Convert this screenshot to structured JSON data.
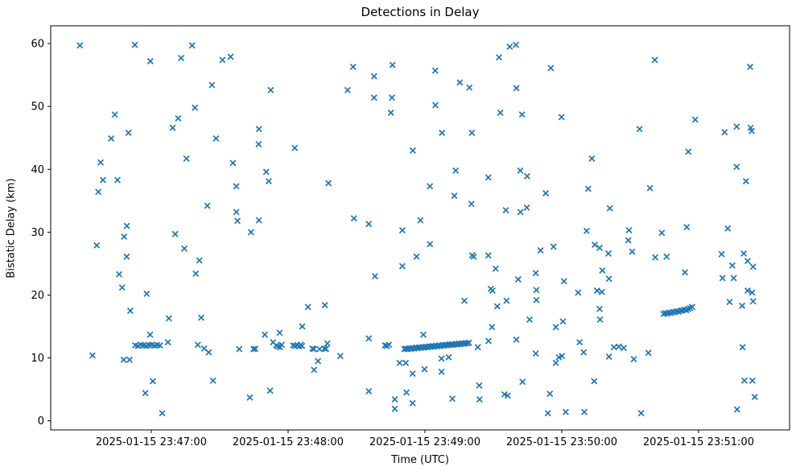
{
  "figure": {
    "title": "Detections in Delay",
    "xlabel": "Time (UTC)",
    "ylabel": "Bistatic Delay (km)"
  },
  "chart_data": {
    "type": "scatter",
    "title": "Detections in Delay",
    "xlabel": "Time (UTC)",
    "ylabel": "Bistatic Delay (km)",
    "marker": "x",
    "marker_color": "#1f77b4",
    "axis_color": "#000000",
    "grid": false,
    "legend": null,
    "x_unit": "seconds after 2025-01-15 23:46:00 UTC",
    "xlim_seconds": [
      15.9,
      339.9
    ],
    "ylim": [
      -1.45,
      62.83
    ],
    "x_ticks": [
      {
        "seconds": 60,
        "label": "2025-01-15 23:47:00"
      },
      {
        "seconds": 120,
        "label": "2025-01-15 23:48:00"
      },
      {
        "seconds": 180,
        "label": "2025-01-15 23:49:00"
      },
      {
        "seconds": 240,
        "label": "2025-01-15 23:50:00"
      },
      {
        "seconds": 300,
        "label": "2025-01-15 23:51:00"
      }
    ],
    "y_ticks": [
      0,
      10,
      20,
      30,
      40,
      50,
      60
    ],
    "points": [
      [
        28.7,
        59.7
      ],
      [
        52.8,
        59.8
      ],
      [
        77.9,
        59.7
      ],
      [
        59.6,
        57.2
      ],
      [
        73.1,
        57.7
      ],
      [
        79.1,
        49.8
      ],
      [
        44,
        48.7
      ],
      [
        71.8,
        48.1
      ],
      [
        69.4,
        46.6
      ],
      [
        50,
        45.8
      ],
      [
        42.4,
        44.9
      ],
      [
        37.8,
        41.1
      ],
      [
        75.4,
        41.7
      ],
      [
        38.8,
        38.3
      ],
      [
        45.2,
        38.3
      ],
      [
        36.8,
        36.4
      ],
      [
        49.3,
        31
      ],
      [
        48.1,
        29.3
      ],
      [
        70.5,
        29.7
      ],
      [
        36.1,
        27.9
      ],
      [
        74.5,
        27.4
      ],
      [
        49.2,
        26.1
      ],
      [
        81.1,
        25.5
      ],
      [
        45.9,
        23.3
      ],
      [
        79.5,
        23.4
      ],
      [
        47.2,
        21.2
      ],
      [
        58,
        20.2
      ],
      [
        50.8,
        17.5
      ],
      [
        67.7,
        16.3
      ],
      [
        59.5,
        13.7
      ],
      [
        53,
        12.0
      ],
      [
        54.2,
        11.9
      ],
      [
        55.4,
        12.1
      ],
      [
        56.6,
        12.0
      ],
      [
        57.8,
        11.9
      ],
      [
        59,
        12.05
      ],
      [
        60.2,
        12.1
      ],
      [
        61.4,
        11.95
      ],
      [
        62.6,
        12.05
      ],
      [
        63.8,
        12.0
      ],
      [
        67.3,
        12.5
      ],
      [
        80.4,
        12.1
      ],
      [
        34.2,
        10.4
      ],
      [
        47.9,
        9.7
      ],
      [
        50.5,
        9.7
      ],
      [
        60.7,
        6.3
      ],
      [
        57.4,
        4.4
      ],
      [
        64.8,
        1.2
      ],
      [
        83.2,
        11.5
      ],
      [
        85.2,
        10.9
      ],
      [
        81.9,
        16.4
      ],
      [
        91.2,
        57.4
      ],
      [
        94.8,
        57.9
      ],
      [
        86.6,
        53.4
      ],
      [
        112.4,
        52.6
      ],
      [
        146.1,
        52.6
      ],
      [
        107.2,
        46.4
      ],
      [
        88.4,
        44.9
      ],
      [
        107.1,
        44
      ],
      [
        122.9,
        43.4
      ],
      [
        95.8,
        41
      ],
      [
        110.4,
        39.6
      ],
      [
        111.5,
        38.1
      ],
      [
        97.3,
        37.3
      ],
      [
        137.7,
        37.8
      ],
      [
        84.6,
        34.2
      ],
      [
        97.3,
        33.2
      ],
      [
        97.8,
        31.8
      ],
      [
        107.2,
        31.9
      ],
      [
        148.5,
        56.3
      ],
      [
        103.7,
        30
      ],
      [
        98.6,
        11.4
      ],
      [
        104.8,
        11.4
      ],
      [
        105.6,
        11.45
      ],
      [
        109.8,
        13.7
      ],
      [
        116.3,
        14
      ],
      [
        113.4,
        12.5
      ],
      [
        114.8,
        12
      ],
      [
        115.5,
        11.8
      ],
      [
        116.5,
        11.7
      ],
      [
        117.2,
        12.1
      ],
      [
        126.2,
        15
      ],
      [
        128.7,
        18.1
      ],
      [
        136.1,
        18.4
      ],
      [
        122.2,
        12
      ],
      [
        123.1,
        11.9
      ],
      [
        124,
        12.05
      ],
      [
        124.9,
        11.85
      ],
      [
        125.5,
        12.1
      ],
      [
        126.1,
        11.9
      ],
      [
        130.7,
        11.5
      ],
      [
        131.3,
        11.4
      ],
      [
        133.8,
        11.4
      ],
      [
        135.9,
        11.5
      ],
      [
        136.6,
        11.4
      ],
      [
        137.2,
        12.3
      ],
      [
        142.9,
        10.3
      ],
      [
        133.1,
        9.5
      ],
      [
        131.4,
        8.1
      ],
      [
        87.1,
        6.4
      ],
      [
        112.1,
        4.8
      ],
      [
        103.2,
        3.7
      ],
      [
        212.5,
        57.8
      ],
      [
        165.8,
        56.6
      ],
      [
        184.5,
        55.7
      ],
      [
        157.7,
        54.8
      ],
      [
        195.3,
        53.8
      ],
      [
        199.5,
        53
      ],
      [
        157.7,
        51.4
      ],
      [
        165.5,
        51.4
      ],
      [
        184.6,
        50.2
      ],
      [
        213.1,
        49
      ],
      [
        165.1,
        49
      ],
      [
        187.5,
        45.8
      ],
      [
        200.6,
        45.8
      ],
      [
        174.7,
        43
      ],
      [
        193.5,
        39.8
      ],
      [
        207.8,
        38.7
      ],
      [
        182.2,
        37.3
      ],
      [
        192.9,
        35.8
      ],
      [
        200.4,
        34.5
      ],
      [
        148.9,
        32.2
      ],
      [
        155.4,
        31.3
      ],
      [
        178,
        31.9
      ],
      [
        170.1,
        30.3
      ],
      [
        182.2,
        28.1
      ],
      [
        176.3,
        26.1
      ],
      [
        200.7,
        26.3
      ],
      [
        201.4,
        26.1
      ],
      [
        207.8,
        26.3
      ],
      [
        170.1,
        24.6
      ],
      [
        211,
        24.2
      ],
      [
        158.1,
        23
      ],
      [
        208.9,
        21
      ],
      [
        209.6,
        20.7
      ],
      [
        197.3,
        19.1
      ],
      [
        211.7,
        18.2
      ],
      [
        209.4,
        14.9
      ],
      [
        155.4,
        13.1
      ],
      [
        179.3,
        13.7
      ],
      [
        162.5,
        12
      ],
      [
        163.3,
        11.9
      ],
      [
        164.2,
        12.1
      ],
      [
        171.0,
        11.4
      ],
      [
        171.7,
        11.48
      ],
      [
        172.4,
        11.4
      ],
      [
        173.2,
        11.52
      ],
      [
        173.9,
        11.46
      ],
      [
        174.6,
        11.59
      ],
      [
        175.3,
        11.5
      ],
      [
        176.1,
        11.62
      ],
      [
        176.8,
        11.55
      ],
      [
        177.5,
        11.68
      ],
      [
        178.2,
        11.61
      ],
      [
        179.0,
        11.73
      ],
      [
        179.7,
        11.66
      ],
      [
        180.4,
        11.78
      ],
      [
        181.1,
        11.7
      ],
      [
        181.9,
        11.83
      ],
      [
        182.6,
        11.76
      ],
      [
        183.3,
        11.88
      ],
      [
        184.0,
        11.81
      ],
      [
        184.8,
        11.93
      ],
      [
        185.5,
        11.86
      ],
      [
        186.2,
        11.98
      ],
      [
        186.9,
        11.91
      ],
      [
        187.7,
        12.03
      ],
      [
        188.4,
        11.96
      ],
      [
        189.1,
        12.08
      ],
      [
        189.8,
        12.01
      ],
      [
        190.6,
        12.13
      ],
      [
        191.3,
        12.06
      ],
      [
        192.0,
        12.18
      ],
      [
        192.7,
        12.1
      ],
      [
        193.5,
        12.22
      ],
      [
        194.2,
        12.15
      ],
      [
        194.9,
        12.27
      ],
      [
        195.6,
        12.2
      ],
      [
        196.4,
        12.32
      ],
      [
        197.1,
        12.25
      ],
      [
        197.8,
        12.37
      ],
      [
        198.5,
        12.3
      ],
      [
        199.3,
        12.42
      ],
      [
        203.2,
        11.7
      ],
      [
        207.9,
        12.7
      ],
      [
        187.3,
        9.9
      ],
      [
        190.4,
        10.1
      ],
      [
        168.9,
        9.2
      ],
      [
        171.6,
        9.2
      ],
      [
        179.8,
        8.2
      ],
      [
        174.6,
        7.5
      ],
      [
        187.3,
        7.8
      ],
      [
        203.8,
        5.6
      ],
      [
        155.4,
        4.7
      ],
      [
        171.9,
        4.5
      ],
      [
        166.8,
        3.4
      ],
      [
        174.6,
        2.8
      ],
      [
        192,
        3.5
      ],
      [
        166.8,
        1.9
      ],
      [
        204,
        3.4
      ],
      [
        214.9,
        4.2
      ],
      [
        216.3,
        4.0
      ],
      [
        215.8,
        19.1
      ],
      [
        217.2,
        59.5
      ],
      [
        219.9,
        59.8
      ],
      [
        280.8,
        57.4
      ],
      [
        235.2,
        56.1
      ],
      [
        220.1,
        52.9
      ],
      [
        222.6,
        48.7
      ],
      [
        239.9,
        48.3
      ],
      [
        274.1,
        46.4
      ],
      [
        253.2,
        41.7
      ],
      [
        221.8,
        39.8
      ],
      [
        224.8,
        38.9
      ],
      [
        233,
        36.2
      ],
      [
        251.6,
        36.9
      ],
      [
        278.7,
        37
      ],
      [
        215.5,
        33.5
      ],
      [
        221.9,
        33.2
      ],
      [
        224.7,
        33.9
      ],
      [
        261.1,
        33.8
      ],
      [
        250.9,
        30.2
      ],
      [
        269.5,
        30.3
      ],
      [
        283.9,
        29.9
      ],
      [
        269.2,
        28.7
      ],
      [
        230.7,
        27.1
      ],
      [
        236.4,
        27.7
      ],
      [
        254.5,
        28
      ],
      [
        256.6,
        27.5
      ],
      [
        260.5,
        26.6
      ],
      [
        270.9,
        26.9
      ],
      [
        281,
        26
      ],
      [
        220.9,
        22.5
      ],
      [
        228.6,
        23.5
      ],
      [
        257.8,
        23.9
      ],
      [
        241,
        22.2
      ],
      [
        260.7,
        22.6
      ],
      [
        228.9,
        20.8
      ],
      [
        247.2,
        20.4
      ],
      [
        255.5,
        20.7
      ],
      [
        257.6,
        20.5
      ],
      [
        228.9,
        19.2
      ],
      [
        256.6,
        17.8
      ],
      [
        256.8,
        16.1
      ],
      [
        225.9,
        16.1
      ],
      [
        240.5,
        15.8
      ],
      [
        237.4,
        14.9
      ],
      [
        220.1,
        12.9
      ],
      [
        247.8,
        12.5
      ],
      [
        262.9,
        11.7
      ],
      [
        265,
        11.8
      ],
      [
        267.2,
        11.6
      ],
      [
        249.6,
        10.9
      ],
      [
        228.6,
        10.7
      ],
      [
        260.7,
        10.2
      ],
      [
        278,
        10.8
      ],
      [
        271.6,
        9.8
      ],
      [
        238.7,
        10.1
      ],
      [
        240.1,
        10.3
      ],
      [
        237.4,
        9.2
      ],
      [
        222.8,
        6.2
      ],
      [
        254.2,
        6.3
      ],
      [
        234.8,
        4.3
      ],
      [
        233.9,
        1.2
      ],
      [
        241.7,
        1.4
      ],
      [
        249.9,
        1.4
      ],
      [
        274.8,
        1.2
      ],
      [
        322.6,
        56.3
      ],
      [
        298.5,
        47.9
      ],
      [
        311.4,
        45.9
      ],
      [
        316.7,
        46.8
      ],
      [
        322.8,
        46.6
      ],
      [
        323.3,
        46.1
      ],
      [
        295.5,
        42.8
      ],
      [
        316.7,
        40.4
      ],
      [
        320.8,
        38.1
      ],
      [
        294.8,
        30.8
      ],
      [
        312.8,
        30.6
      ],
      [
        286,
        26.1
      ],
      [
        294,
        23.6
      ],
      [
        310.1,
        26.5
      ],
      [
        314.8,
        24.7
      ],
      [
        319.8,
        26.6
      ],
      [
        321.5,
        25.4
      ],
      [
        323.9,
        24.5
      ],
      [
        310.5,
        22.7
      ],
      [
        315.4,
        22.7
      ],
      [
        321.5,
        20.7
      ],
      [
        323.5,
        20.4
      ],
      [
        313.6,
        18.9
      ],
      [
        319.1,
        18.3
      ],
      [
        323.9,
        19
      ],
      [
        284.6,
        17.0
      ],
      [
        285.4,
        17.12
      ],
      [
        286.3,
        17.06
      ],
      [
        287.1,
        17.22
      ],
      [
        287.9,
        17.16
      ],
      [
        288.8,
        17.32
      ],
      [
        289.6,
        17.26
      ],
      [
        290.4,
        17.42
      ],
      [
        291.3,
        17.36
      ],
      [
        292.1,
        17.52
      ],
      [
        292.9,
        17.55
      ],
      [
        293.8,
        17.68
      ],
      [
        294.6,
        17.62
      ],
      [
        295.4,
        17.8
      ],
      [
        296.3,
        17.92
      ],
      [
        297.2,
        18.1
      ],
      [
        319.3,
        11.7
      ],
      [
        320.1,
        6.4
      ],
      [
        323.6,
        6.4
      ],
      [
        324.6,
        3.8
      ],
      [
        316.9,
        1.8
      ]
    ]
  }
}
